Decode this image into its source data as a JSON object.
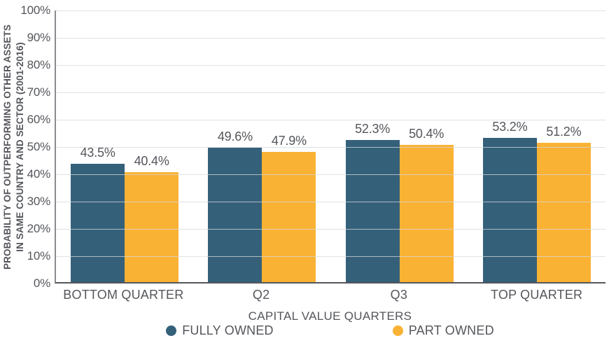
{
  "colors": {
    "fully_owned": "#35607A",
    "part_owned": "#FAB234",
    "text": "#54565B",
    "gridline": "#D6D8DA",
    "axis": "#54565B"
  },
  "chart_data": {
    "type": "bar",
    "categories": [
      "BOTTOM QUARTER",
      "Q2",
      "Q3",
      "TOP QUARTER"
    ],
    "series": [
      {
        "name": "FULLY OWNED",
        "color": "#35607A",
        "values": [
          43.5,
          49.6,
          52.3,
          53.2
        ],
        "labels": [
          "43.5%",
          "49.6%",
          "52.3%",
          "53.2%"
        ]
      },
      {
        "name": "PART OWNED",
        "color": "#FAB234",
        "values": [
          40.4,
          47.9,
          50.4,
          51.2
        ],
        "labels": [
          "40.4%",
          "47.9%",
          "50.4%",
          "51.2%"
        ]
      }
    ],
    "title": "",
    "xlabel": "CAPITAL VALUE QUARTERS",
    "ylabel_line1": "PROBABILITY OF OUTPERFORMING OTHER ASSETS",
    "ylabel_line2": "IN SAME COUNTRY AND SECTOR (2001-2016)",
    "yticks": [
      "0%",
      "10%",
      "20%",
      "30%",
      "40%",
      "50%",
      "60%",
      "70%",
      "80%",
      "90%",
      "100%"
    ],
    "ylim": [
      0,
      100
    ],
    "grid": true,
    "legend_position": "bottom"
  }
}
